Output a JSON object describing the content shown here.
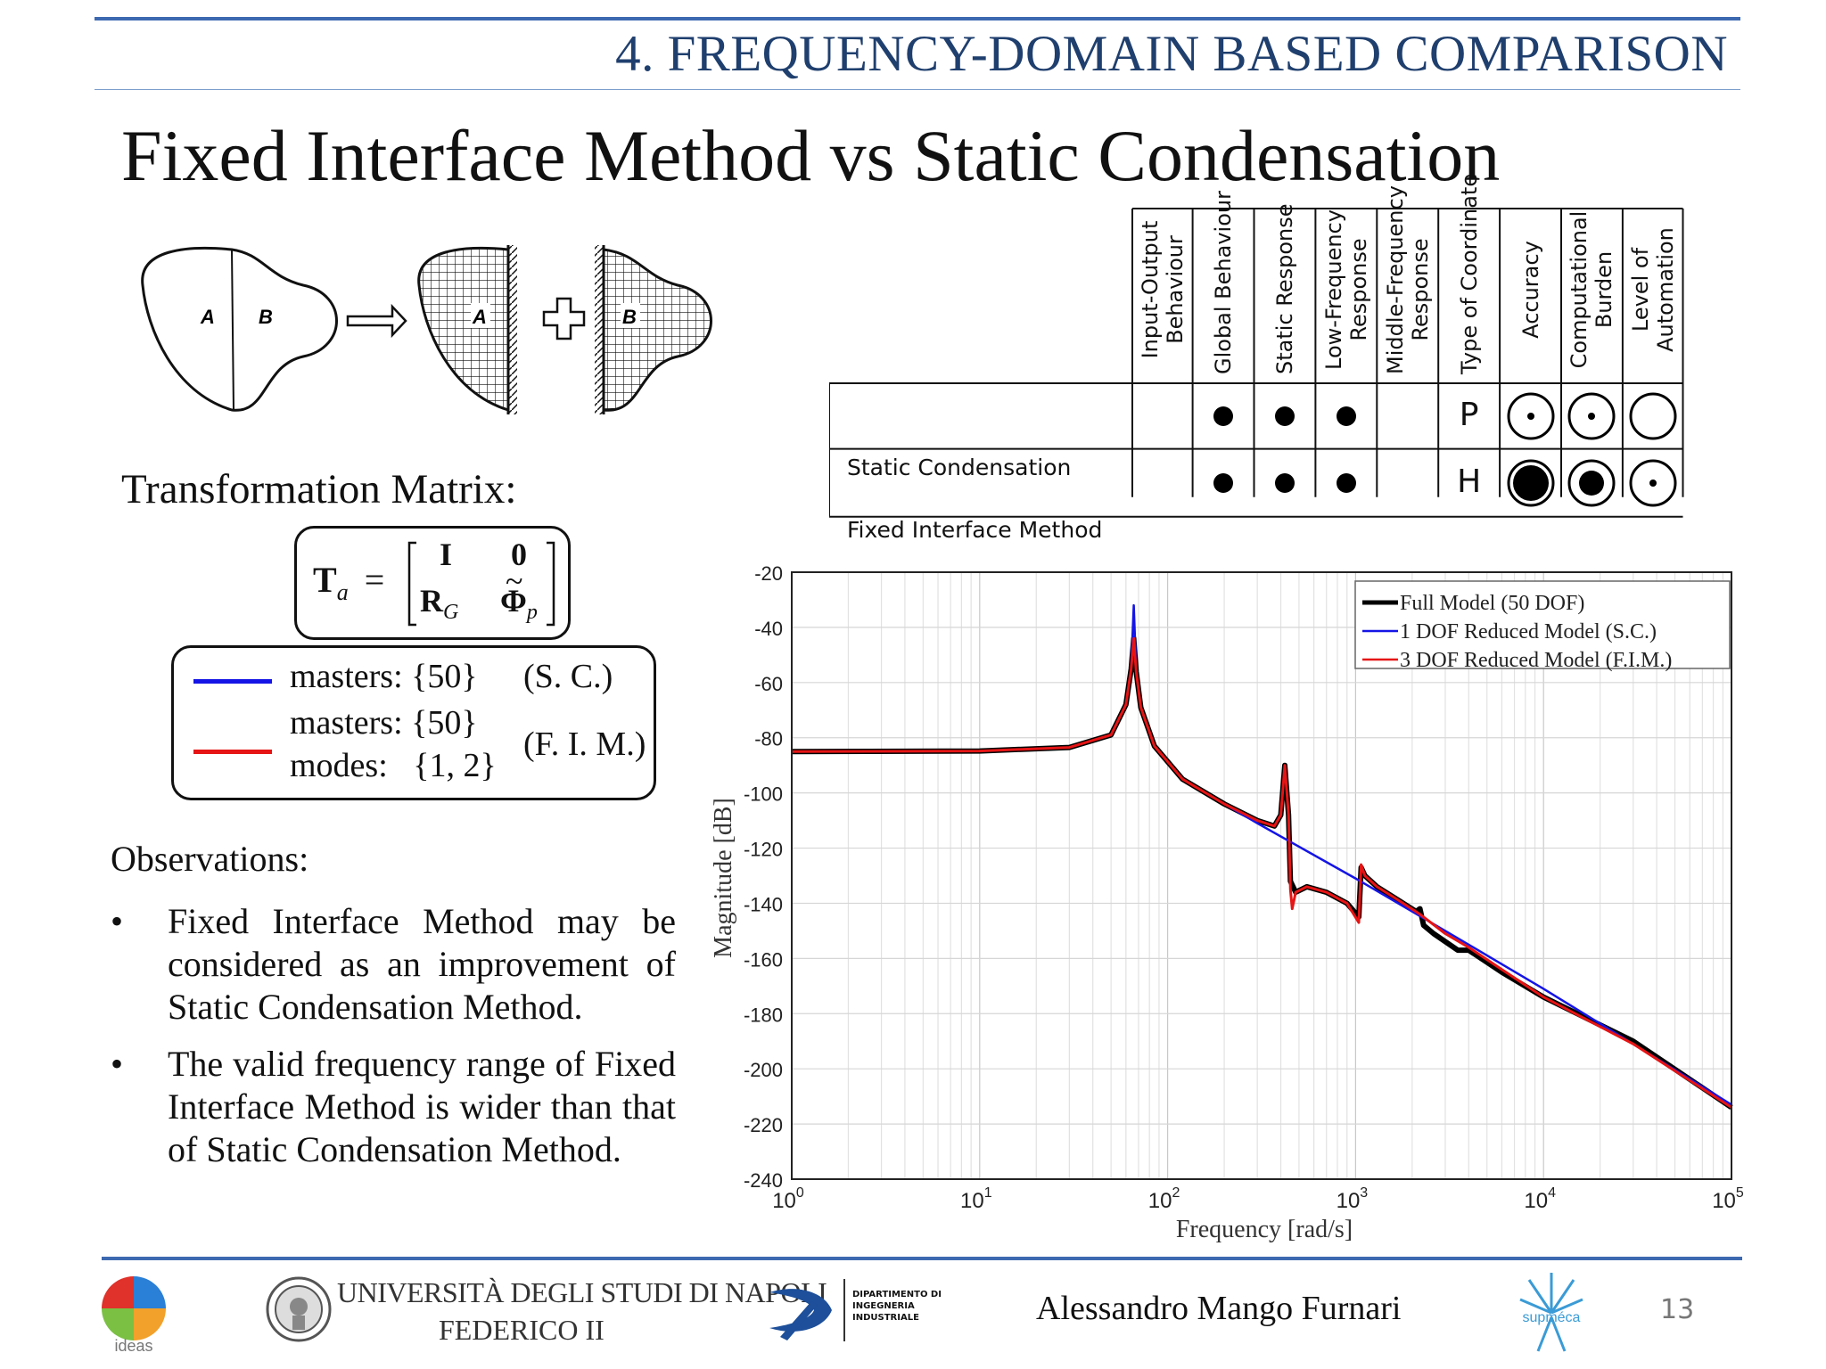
{
  "header": {
    "section_title": "4. FREQUENCY-DOMAIN BASED COMPARISON",
    "slide_title": "Fixed Interface Method vs Static Condensation"
  },
  "diagram": {
    "label_a": "A",
    "label_b": "B"
  },
  "transformation": {
    "label": "Transformation Matrix:",
    "matrix_lhs": "T",
    "matrix_sub": "a",
    "m11": "I",
    "m12": "0",
    "m21": "R",
    "m21_sub": "G",
    "m22": "Φ",
    "m22_sub": "p"
  },
  "legend": {
    "blue_color": "#1414e6",
    "red_color": "#e61414",
    "line1": "masters: {50}",
    "line1_tag": "(S. C.)",
    "line2": "masters: {50}",
    "line3": "modes:   {1, 2}",
    "line23_tag": "(F. I. M.)"
  },
  "observations": {
    "heading": "Observations:",
    "bullet_symbol": "•",
    "items": [
      "Fixed Interface Method may be considered as an improvement of Static Condensation Method.",
      "The valid frequency range of Fixed Interface Method is wider than that of Static Condensation Method."
    ]
  },
  "comparison_table": {
    "columns": [
      "Input-Output\nBehaviour",
      "Global Behaviour",
      "Static Response",
      "Low-Frequency\nResponse",
      "Middle-Frequency\nResponse",
      "Type of Coordinate",
      "Accuracy",
      "Computational\nBurden",
      "Level of\nAutomation"
    ],
    "rows": [
      {
        "label": "Static Condensation",
        "cells": [
          "",
          "dot",
          "dot",
          "dot",
          "",
          "P",
          "circle-dot-small",
          "circle-dot-small",
          "circle-empty"
        ]
      },
      {
        "label": "Fixed Interface Method",
        "cells": [
          "",
          "dot",
          "dot",
          "dot",
          "",
          "H",
          "circle-filled",
          "circle-dot-medium",
          "circle-dot-small"
        ]
      }
    ]
  },
  "chart_data": {
    "type": "line",
    "title": "",
    "xlabel": "Frequency [rad/s]",
    "ylabel": "Magnitude [dB]",
    "x_scale": "log",
    "xlim": [
      1,
      100000
    ],
    "ylim": [
      -240,
      -20
    ],
    "x_ticks": [
      {
        "base": "10",
        "exp": "0"
      },
      {
        "base": "10",
        "exp": "1"
      },
      {
        "base": "10",
        "exp": "2"
      },
      {
        "base": "10",
        "exp": "3"
      },
      {
        "base": "10",
        "exp": "4"
      },
      {
        "base": "10",
        "exp": "5"
      }
    ],
    "y_ticks": [
      "-20",
      "-40",
      "-60",
      "-80",
      "-100",
      "-120",
      "-140",
      "-160",
      "-180",
      "-200",
      "-220",
      "-240"
    ],
    "grid": true,
    "legend_position": "top-right",
    "series": [
      {
        "name": "Full Model (50 DOF)",
        "color": "#000000",
        "points": [
          [
            1,
            -85
          ],
          [
            10,
            -84.8
          ],
          [
            30,
            -83.5
          ],
          [
            50,
            -79
          ],
          [
            60,
            -68
          ],
          [
            64,
            -55
          ],
          [
            66,
            -44
          ],
          [
            68,
            -56
          ],
          [
            72,
            -69
          ],
          [
            85,
            -83
          ],
          [
            120,
            -95
          ],
          [
            200,
            -104
          ],
          [
            300,
            -110
          ],
          [
            370,
            -112
          ],
          [
            400,
            -108
          ],
          [
            420,
            -90
          ],
          [
            440,
            -108
          ],
          [
            450,
            -132
          ],
          [
            480,
            -136
          ],
          [
            550,
            -134
          ],
          [
            700,
            -136
          ],
          [
            900,
            -140
          ],
          [
            1040,
            -145
          ],
          [
            1070,
            -127
          ],
          [
            1120,
            -130
          ],
          [
            1300,
            -134
          ],
          [
            1700,
            -139
          ],
          [
            2100,
            -143
          ],
          [
            2200,
            -142
          ],
          [
            2300,
            -148
          ],
          [
            2600,
            -151
          ],
          [
            3500,
            -157
          ],
          [
            4000,
            -157
          ],
          [
            6000,
            -165
          ],
          [
            10000,
            -174
          ],
          [
            30000,
            -190
          ],
          [
            100000,
            -214
          ]
        ]
      },
      {
        "name": "1 DOF Reduced Model (S.C.)",
        "color": "#1414e6",
        "points": [
          [
            1,
            -85
          ],
          [
            10,
            -84.8
          ],
          [
            30,
            -83.5
          ],
          [
            50,
            -79
          ],
          [
            60,
            -68
          ],
          [
            64,
            -55
          ],
          [
            66,
            -32
          ],
          [
            68,
            -56
          ],
          [
            72,
            -69
          ],
          [
            85,
            -83
          ],
          [
            120,
            -95
          ],
          [
            200,
            -104
          ],
          [
            300,
            -111
          ],
          [
            1000,
            -131
          ],
          [
            3000,
            -150
          ],
          [
            10000,
            -171
          ],
          [
            100000,
            -213
          ]
        ]
      },
      {
        "name": "3 DOF Reduced Model (F.I.M.)",
        "color": "#e61414",
        "points": [
          [
            1,
            -85
          ],
          [
            10,
            -84.8
          ],
          [
            30,
            -83.5
          ],
          [
            50,
            -79
          ],
          [
            60,
            -68
          ],
          [
            64,
            -55
          ],
          [
            66,
            -44
          ],
          [
            68,
            -56
          ],
          [
            72,
            -69
          ],
          [
            85,
            -83
          ],
          [
            120,
            -95
          ],
          [
            200,
            -104
          ],
          [
            300,
            -110
          ],
          [
            370,
            -112
          ],
          [
            400,
            -108
          ],
          [
            420,
            -90
          ],
          [
            440,
            -108
          ],
          [
            450,
            -135
          ],
          [
            460,
            -142
          ],
          [
            480,
            -136
          ],
          [
            550,
            -134
          ],
          [
            700,
            -136
          ],
          [
            900,
            -140
          ],
          [
            1040,
            -147
          ],
          [
            1070,
            -126
          ],
          [
            1120,
            -130
          ],
          [
            1300,
            -134
          ],
          [
            1700,
            -139
          ],
          [
            2200,
            -144
          ],
          [
            3000,
            -151
          ],
          [
            4000,
            -156
          ],
          [
            6000,
            -164
          ],
          [
            10000,
            -174
          ],
          [
            30000,
            -191
          ],
          [
            100000,
            -214
          ]
        ]
      }
    ]
  },
  "footer": {
    "author": "Alessandro Mango Furnari",
    "page_number": "13",
    "logo_ideas": "ideas",
    "logo_unina_line1": "UNIVERSITÀ DEGLI STUDI DI NAPOLI",
    "logo_unina_line2": "FEDERICO II",
    "logo_dii_text": "DIPARTIMENTO DI\nINGEGNERIA\nINDUSTRIALE",
    "logo_supmeca": "supméca"
  }
}
